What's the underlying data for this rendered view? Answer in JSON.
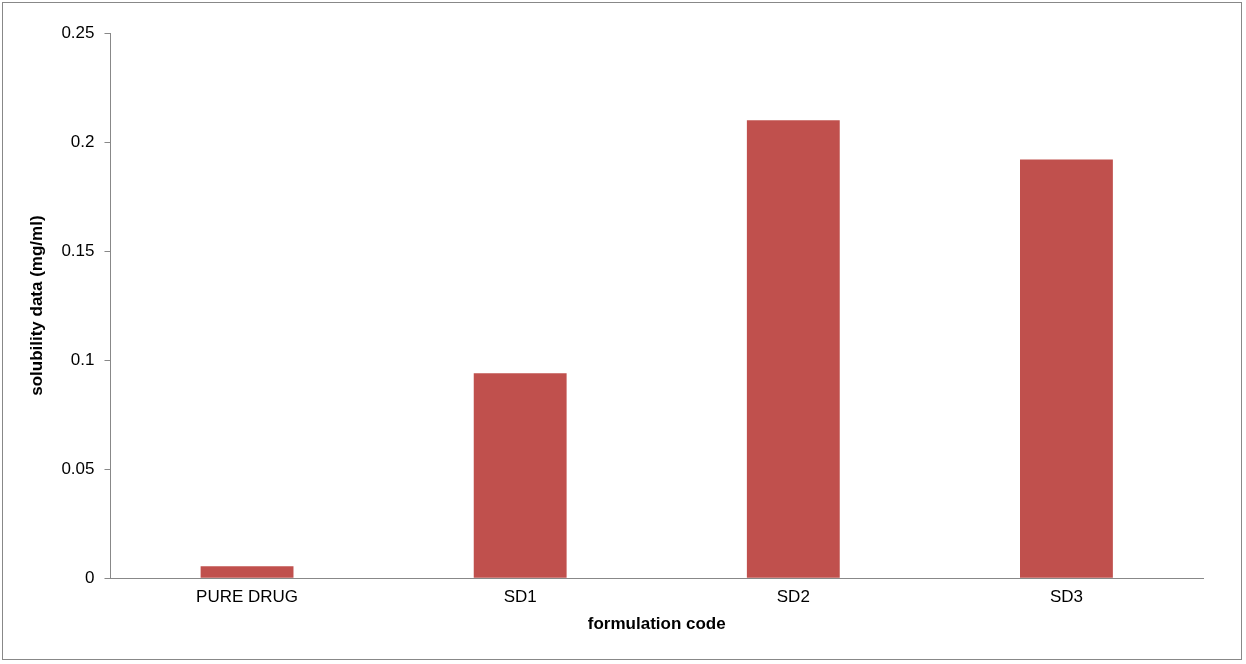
{
  "chart_data": {
    "type": "bar",
    "xlabel": "formulation code",
    "ylabel": "solubility data (mg/ml)",
    "categories": [
      "PURE DRUG",
      "SD1",
      "SD2",
      "SD3"
    ],
    "values": [
      0.0055,
      0.094,
      0.21,
      0.192
    ],
    "color": "#c0504d",
    "ylim": [
      0,
      0.25
    ],
    "yticks": [
      0,
      0.05,
      0.1,
      0.15,
      0.2,
      0.25
    ],
    "grid": false,
    "legend": false
  }
}
